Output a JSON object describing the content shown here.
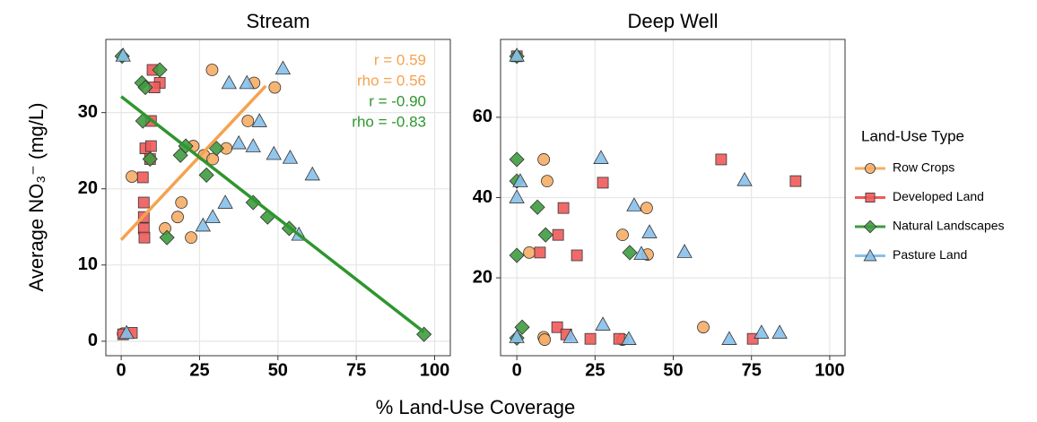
{
  "ylabel": "Average NO₃⁻ (mg/L)",
  "xlabel": "% Land-Use Coverage",
  "legend_title": "Land-Use Type",
  "chart_data": [
    {
      "type": "scatter",
      "title": "Stream",
      "xlim": [
        -4.9,
        105
      ],
      "ylim": [
        -1.9,
        39.6
      ],
      "xticks": [
        0,
        25,
        50,
        75,
        100
      ],
      "yticks": [
        0,
        10,
        20,
        30
      ],
      "grid": true,
      "series": [
        {
          "name": "Row Crops",
          "color": "#f6ad66",
          "marker": "circle",
          "x": [
            0.6,
            3.4,
            29,
            42.4,
            49,
            40.4,
            23,
            33.5,
            26.4,
            29.2,
            19.2,
            18,
            14,
            22.3
          ],
          "values": [
            1,
            21.6,
            35.6,
            33.9,
            33.3,
            28.9,
            25.6,
            25.3,
            24.4,
            23.9,
            18.2,
            16.3,
            14.8,
            13.6
          ]
        },
        {
          "name": "Developed Land",
          "color": "#f05a5a",
          "marker": "square",
          "x": [
            0.6,
            3.4,
            10,
            12.3,
            10.6,
            9.5,
            7.7,
            9.5,
            9.2,
            6.9,
            7.2,
            7.2,
            7.2,
            7.4
          ],
          "values": [
            0.9,
            1.1,
            35.6,
            33.9,
            33.3,
            28.9,
            25.3,
            25.6,
            23.9,
            21.5,
            18.2,
            16.3,
            14.8,
            13.6
          ]
        },
        {
          "name": "Natural Landscapes",
          "color": "#3f9b3f",
          "marker": "diamond",
          "x": [
            0.3,
            6.6,
            7.7,
            12.3,
            6.9,
            9.2,
            20.6,
            18.9,
            27.2,
            30.4,
            14.6,
            42.1,
            46.7,
            53.6,
            96.6
          ],
          "values": [
            37.4,
            33.9,
            33.3,
            35.6,
            28.9,
            23.9,
            25.6,
            24.4,
            21.8,
            25.3,
            13.6,
            18.2,
            16.3,
            14.8,
            0.9
          ]
        },
        {
          "name": "Pasture Land",
          "color": "#87c0ea",
          "marker": "triangle",
          "x": [
            0.6,
            1.7,
            34.4,
            40.1,
            51.6,
            44.1,
            37.5,
            42.1,
            48.7,
            53.9,
            61,
            33.2,
            29.2,
            26.1,
            56.7
          ],
          "values": [
            37.5,
            1.1,
            33.9,
            33.9,
            35.8,
            28.9,
            26,
            25.6,
            24.6,
            24.1,
            21.9,
            18.2,
            16.3,
            15.2,
            14
          ]
        }
      ],
      "fits": [
        {
          "color": "#f5a24f",
          "x": [
            0,
            46.1
          ],
          "values": [
            13.3,
            33.5
          ]
        },
        {
          "color": "#2e962e",
          "x": [
            0,
            96.6
          ],
          "values": [
            32.1,
            1.2
          ]
        }
      ],
      "annotations": [
        {
          "text": "r = 0.59",
          "color": "#f5a24f"
        },
        {
          "text": "rho = 0.56",
          "color": "#f5a24f"
        },
        {
          "text": "r = -0.90",
          "color": "#2e962e"
        },
        {
          "text": "rho = -0.83",
          "color": "#2e962e"
        }
      ]
    },
    {
      "type": "scatter",
      "title": "Deep Well",
      "xlim": [
        -5.2,
        104.9
      ],
      "ylim": [
        0.6,
        79.4
      ],
      "xticks": [
        0,
        25,
        50,
        75,
        100
      ],
      "yticks": [
        20,
        40,
        60
      ],
      "grid": true,
      "series": [
        {
          "name": "Row Crops",
          "color": "#f6ad66",
          "marker": "circle",
          "x": [
            8.6,
            9.7,
            4,
            8.6,
            8.9,
            33.8,
            41.5,
            41.8,
            59.6,
            33.8
          ],
          "values": [
            49.5,
            44.1,
            26.3,
            5.2,
            4.6,
            30.7,
            37.4,
            25.8,
            7.7,
            4.6
          ]
        },
        {
          "name": "Developed Land",
          "color": "#f05a5a",
          "marker": "square",
          "x": [
            0,
            14.9,
            7.4,
            13.2,
            19.2,
            27.5,
            65.3,
            89.1,
            12.9,
            15.8,
            23.5,
            32.7,
            75.4
          ],
          "values": [
            75.2,
            37.4,
            26.3,
            30.7,
            25.6,
            43.7,
            49.5,
            44.1,
            7.7,
            5.9,
            4.8,
            4.8,
            4.8
          ]
        },
        {
          "name": "Natural Landscapes",
          "color": "#3f9b3f",
          "marker": "diamond",
          "x": [
            0,
            0,
            0,
            6.6,
            9.2,
            36.1,
            1.7,
            0,
            0
          ],
          "values": [
            49.5,
            44.1,
            25.6,
            37.6,
            30.7,
            26.3,
            7.7,
            5,
            75.2
          ]
        },
        {
          "name": "Pasture Land",
          "color": "#87c0ea",
          "marker": "triangle",
          "x": [
            0,
            1.1,
            0,
            26.9,
            37.5,
            42.4,
            39.8,
            53.6,
            72.8,
            27.5,
            0,
            17.2,
            35.8,
            67.9,
            78.2,
            84
          ],
          "values": [
            75.4,
            44.1,
            40.1,
            49.9,
            38.1,
            31.4,
            26,
            26.5,
            44.4,
            8.4,
            5.3,
            5.3,
            4.8,
            4.8,
            6.4,
            6.4
          ]
        }
      ]
    }
  ]
}
